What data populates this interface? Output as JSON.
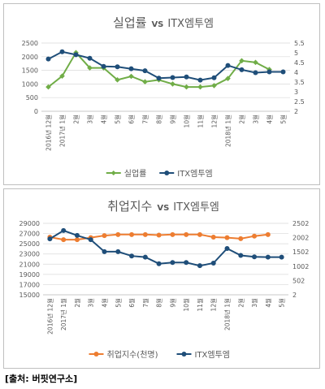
{
  "colors": {
    "green": "#70ad47",
    "navy": "#1f4e79",
    "orange": "#ed7d31",
    "text": "#595959",
    "grid": "#d9d9d9"
  },
  "source_note": "[출처: 버핏연구소]",
  "chart_data": [
    {
      "type": "line",
      "title_main": "실업률",
      "title_vs": "VS",
      "title_tail": "ITX엠투엠",
      "categories": [
        "2016년 12월",
        "2017년 1월",
        "2월",
        "3월",
        "4월",
        "5월",
        "6월",
        "7월",
        "8월",
        "9월",
        "10월",
        "11월",
        "12월",
        "2018년 1월",
        "2월",
        "3월",
        "4월",
        "5월"
      ],
      "left_axis": {
        "ylim": [
          0,
          2500
        ],
        "ticks": [
          "0",
          "500",
          "1000",
          "1500",
          "2000",
          "2500"
        ]
      },
      "right_axis": {
        "ylim": [
          2,
          5.5
        ],
        "ticks": [
          "2",
          "2.5",
          "3",
          "3.5",
          "4",
          "4.5",
          "5",
          "5.5"
        ]
      },
      "series": [
        {
          "name": "실업률",
          "axis": "left",
          "color": "#70ad47",
          "marker": "diamond",
          "values": [
            890,
            1290,
            2150,
            1590,
            1590,
            1150,
            1280,
            1080,
            1150,
            1000,
            890,
            890,
            940,
            1200,
            1850,
            1790,
            1530,
            null
          ]
        },
        {
          "name": "ITX엠투엠",
          "axis": "right",
          "color": "#1f4e79",
          "marker": "circle",
          "values": [
            4.68,
            5.05,
            4.9,
            4.72,
            4.3,
            4.28,
            4.18,
            4.08,
            3.7,
            3.73,
            3.76,
            3.6,
            3.72,
            4.35,
            4.13,
            3.98,
            4.02,
            4.02
          ]
        }
      ]
    },
    {
      "type": "line",
      "title_main": "취업지수",
      "title_vs": "VS",
      "title_tail": "ITX엠투엠",
      "categories": [
        "2016년 12월",
        "2017년 1월",
        "2월",
        "3월",
        "4월",
        "5월",
        "6월",
        "7월",
        "8월",
        "9월",
        "10월",
        "11월",
        "12월",
        "2018년 1월",
        "2월",
        "3월",
        "4월",
        "5월"
      ],
      "left_axis": {
        "ylim": [
          15000,
          29000
        ],
        "ticks": [
          "15000",
          "17000",
          "19000",
          "21000",
          "23000",
          "25000",
          "27000",
          "29000"
        ]
      },
      "right_axis": {
        "ylim": [
          2,
          2502
        ],
        "ticks": [
          "2",
          "502",
          "1002",
          "1502",
          "2002",
          "2502"
        ]
      },
      "series": [
        {
          "name": "취업지수(천명)",
          "axis": "left",
          "color": "#ed7d31",
          "marker": "circle",
          "values": [
            26300,
            25800,
            25800,
            26200,
            26600,
            26800,
            26800,
            26800,
            26700,
            26800,
            26800,
            26800,
            26300,
            26200,
            26000,
            26500,
            26800,
            null
          ]
        },
        {
          "name": "ITX엠투엠",
          "axis": "right",
          "color": "#1f4e79",
          "marker": "circle",
          "values": [
            1960,
            2250,
            2080,
            1930,
            1510,
            1510,
            1360,
            1320,
            1090,
            1130,
            1130,
            1020,
            1110,
            1620,
            1380,
            1330,
            1320,
            1320
          ]
        }
      ]
    }
  ]
}
